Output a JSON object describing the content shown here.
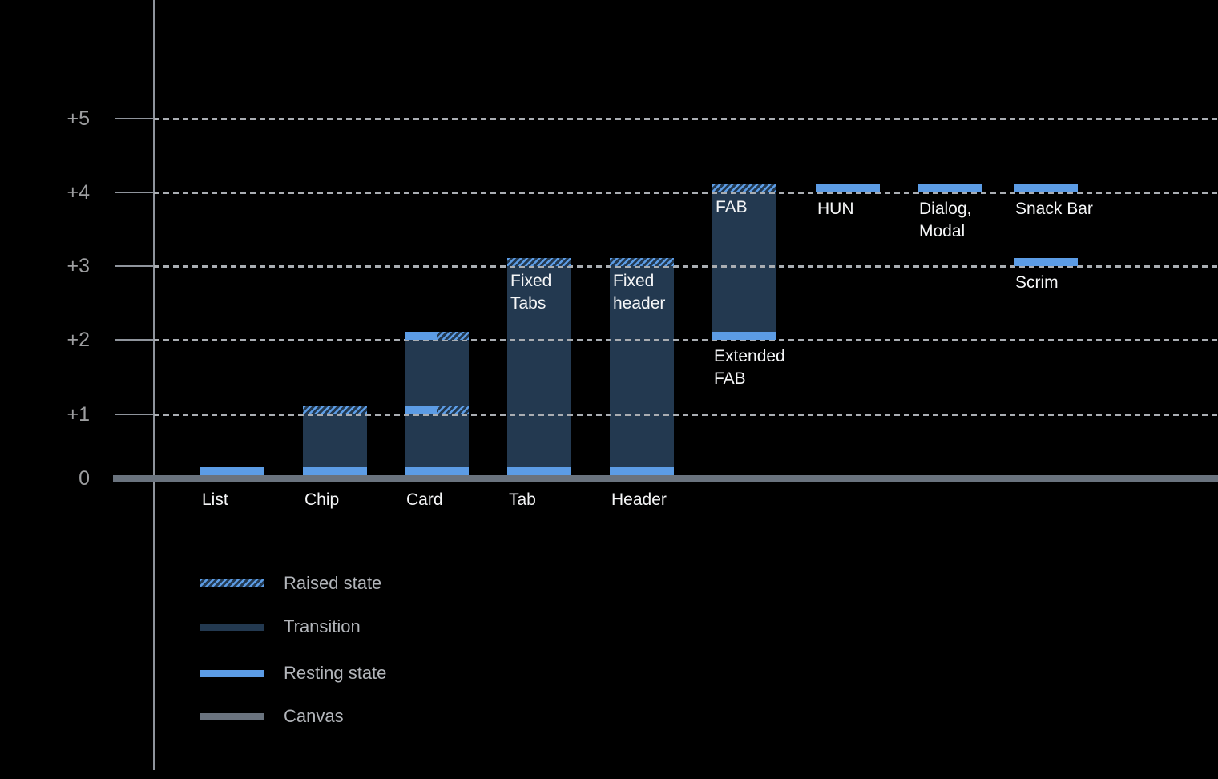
{
  "chart_data": {
    "type": "bar",
    "description": "Elevation diagram of UI components above the canvas, in elevation steps 0 to +5",
    "y_axis": {
      "tick_labels": [
        "+5",
        "+4",
        "+3",
        "+2",
        "+1",
        "0"
      ],
      "tick_values": [
        5,
        4,
        3,
        2,
        1,
        0
      ],
      "range": [
        0,
        5
      ],
      "grid": "dotted horizontal lines at +1..+5, thick canvas line at 0"
    },
    "items": [
      {
        "name": "list",
        "slot": 0,
        "label": "List",
        "label_lines": [
          "List"
        ],
        "label_placement": "baseline",
        "marks": [
          {
            "level": 0,
            "style": "resting"
          }
        ]
      },
      {
        "name": "chip",
        "slot": 1,
        "label": "Chip",
        "label_lines": [
          "Chip"
        ],
        "label_placement": "baseline",
        "span": [
          0,
          1
        ],
        "marks": [
          {
            "level": 0,
            "style": "resting"
          },
          {
            "level": 1,
            "style": "raised"
          }
        ]
      },
      {
        "name": "card",
        "slot": 2,
        "label": "Card",
        "label_lines": [
          "Card"
        ],
        "label_placement": "baseline",
        "span": [
          0,
          2
        ],
        "marks": [
          {
            "level": 0,
            "style": "resting"
          },
          {
            "level": 1,
            "style": "resting-raised"
          },
          {
            "level": 2,
            "style": "resting-raised"
          }
        ]
      },
      {
        "name": "tab",
        "slot": 3,
        "label": "Tab",
        "label_lines": [
          "Tab"
        ],
        "label_placement": "baseline",
        "inner_label_lines": [
          "Fixed",
          "Tabs"
        ],
        "span": [
          0,
          3
        ],
        "marks": [
          {
            "level": 0,
            "style": "resting"
          },
          {
            "level": 3,
            "style": "raised"
          }
        ]
      },
      {
        "name": "header",
        "slot": 4,
        "label": "Header",
        "label_lines": [
          "Header"
        ],
        "label_placement": "baseline",
        "inner_label_lines": [
          "Fixed",
          "header"
        ],
        "span": [
          0,
          3
        ],
        "marks": [
          {
            "level": 0,
            "style": "resting"
          },
          {
            "level": 3,
            "style": "raised"
          }
        ]
      },
      {
        "name": "extended-fab",
        "slot": 5,
        "label": "Extended FAB",
        "label_lines": [
          "Extended",
          "FAB"
        ],
        "label_placement": "below-level",
        "label_level": 2,
        "inner_label_lines": [
          "FAB"
        ],
        "span": [
          2,
          4
        ],
        "marks": [
          {
            "level": 2,
            "style": "resting"
          },
          {
            "level": 4,
            "style": "raised"
          }
        ]
      },
      {
        "name": "hun",
        "slot": 6,
        "label": "HUN",
        "label_lines": [
          "HUN"
        ],
        "label_placement": "below-level",
        "label_level": 4,
        "marks": [
          {
            "level": 4,
            "style": "resting"
          }
        ]
      },
      {
        "name": "dialog-modal",
        "slot": 7,
        "label": "Dialog, Modal",
        "label_lines": [
          "Dialog,",
          "Modal"
        ],
        "label_placement": "below-level",
        "label_level": 4,
        "marks": [
          {
            "level": 4,
            "style": "resting"
          }
        ]
      },
      {
        "name": "snack-bar",
        "slot": 8,
        "label": "Snack Bar",
        "label_lines": [
          "Snack Bar"
        ],
        "label_placement": "below-level",
        "label_level": 4,
        "marks": [
          {
            "level": 4,
            "style": "resting"
          }
        ]
      },
      {
        "name": "scrim",
        "slot": 8,
        "label": "Scrim",
        "label_lines": [
          "Scrim"
        ],
        "label_placement": "below-level",
        "label_level": 3,
        "marks": [
          {
            "level": 3,
            "style": "resting"
          }
        ]
      }
    ]
  },
  "legend": {
    "items": [
      {
        "name": "raised",
        "label": "Raised state"
      },
      {
        "name": "transition",
        "label": "Transition"
      },
      {
        "name": "resting",
        "label": "Resting state"
      },
      {
        "name": "canvas",
        "label": "Canvas"
      }
    ]
  },
  "colors": {
    "background": "#000000",
    "resting_blue": "#5C9CE5",
    "transition_navy": "#233950",
    "canvas_gray": "#6A737E",
    "axis_gray": "#8F949C",
    "grid_dot_gray": "#A9ADB2",
    "tick_label_gray": "#9D9EA0",
    "component_label_white": "#F5F6F7",
    "legend_text_gray": "#B2B5BA"
  }
}
